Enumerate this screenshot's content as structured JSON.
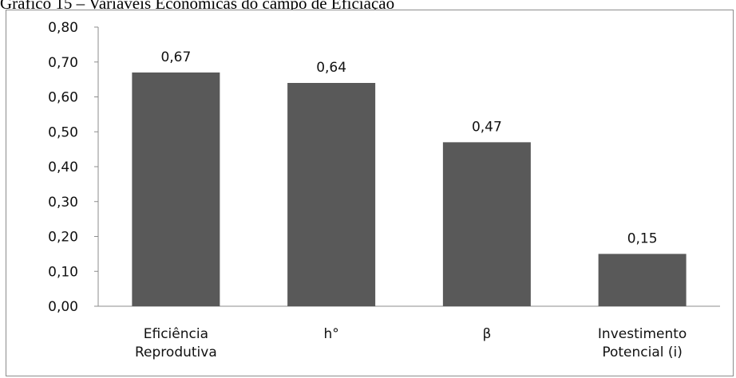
{
  "caption": "Gráfico 15 – Variáveis Econômicas do campo de Eficiação",
  "chart_data": {
    "type": "bar",
    "title": "",
    "xlabel": "",
    "ylabel": "",
    "categories": [
      [
        "Eficiência",
        "Reprodutiva"
      ],
      [
        "h°"
      ],
      [
        "β"
      ],
      [
        "Investimento",
        "Potencial (i)"
      ]
    ],
    "values": [
      0.67,
      0.64,
      0.47,
      0.15
    ],
    "value_labels": [
      "0,67",
      "0,64",
      "0,47",
      "0,15"
    ],
    "ylim": [
      0,
      0.8
    ],
    "yticks": [
      0,
      0.1,
      0.2,
      0.3,
      0.4,
      0.5,
      0.6,
      0.7,
      0.8
    ],
    "ytick_labels": [
      "0,00",
      "0,10",
      "0,20",
      "0,30",
      "0,40",
      "0,50",
      "0,60",
      "0,70",
      "0,80"
    ],
    "grid": false,
    "legend": "none",
    "bar_color": "#595959"
  }
}
